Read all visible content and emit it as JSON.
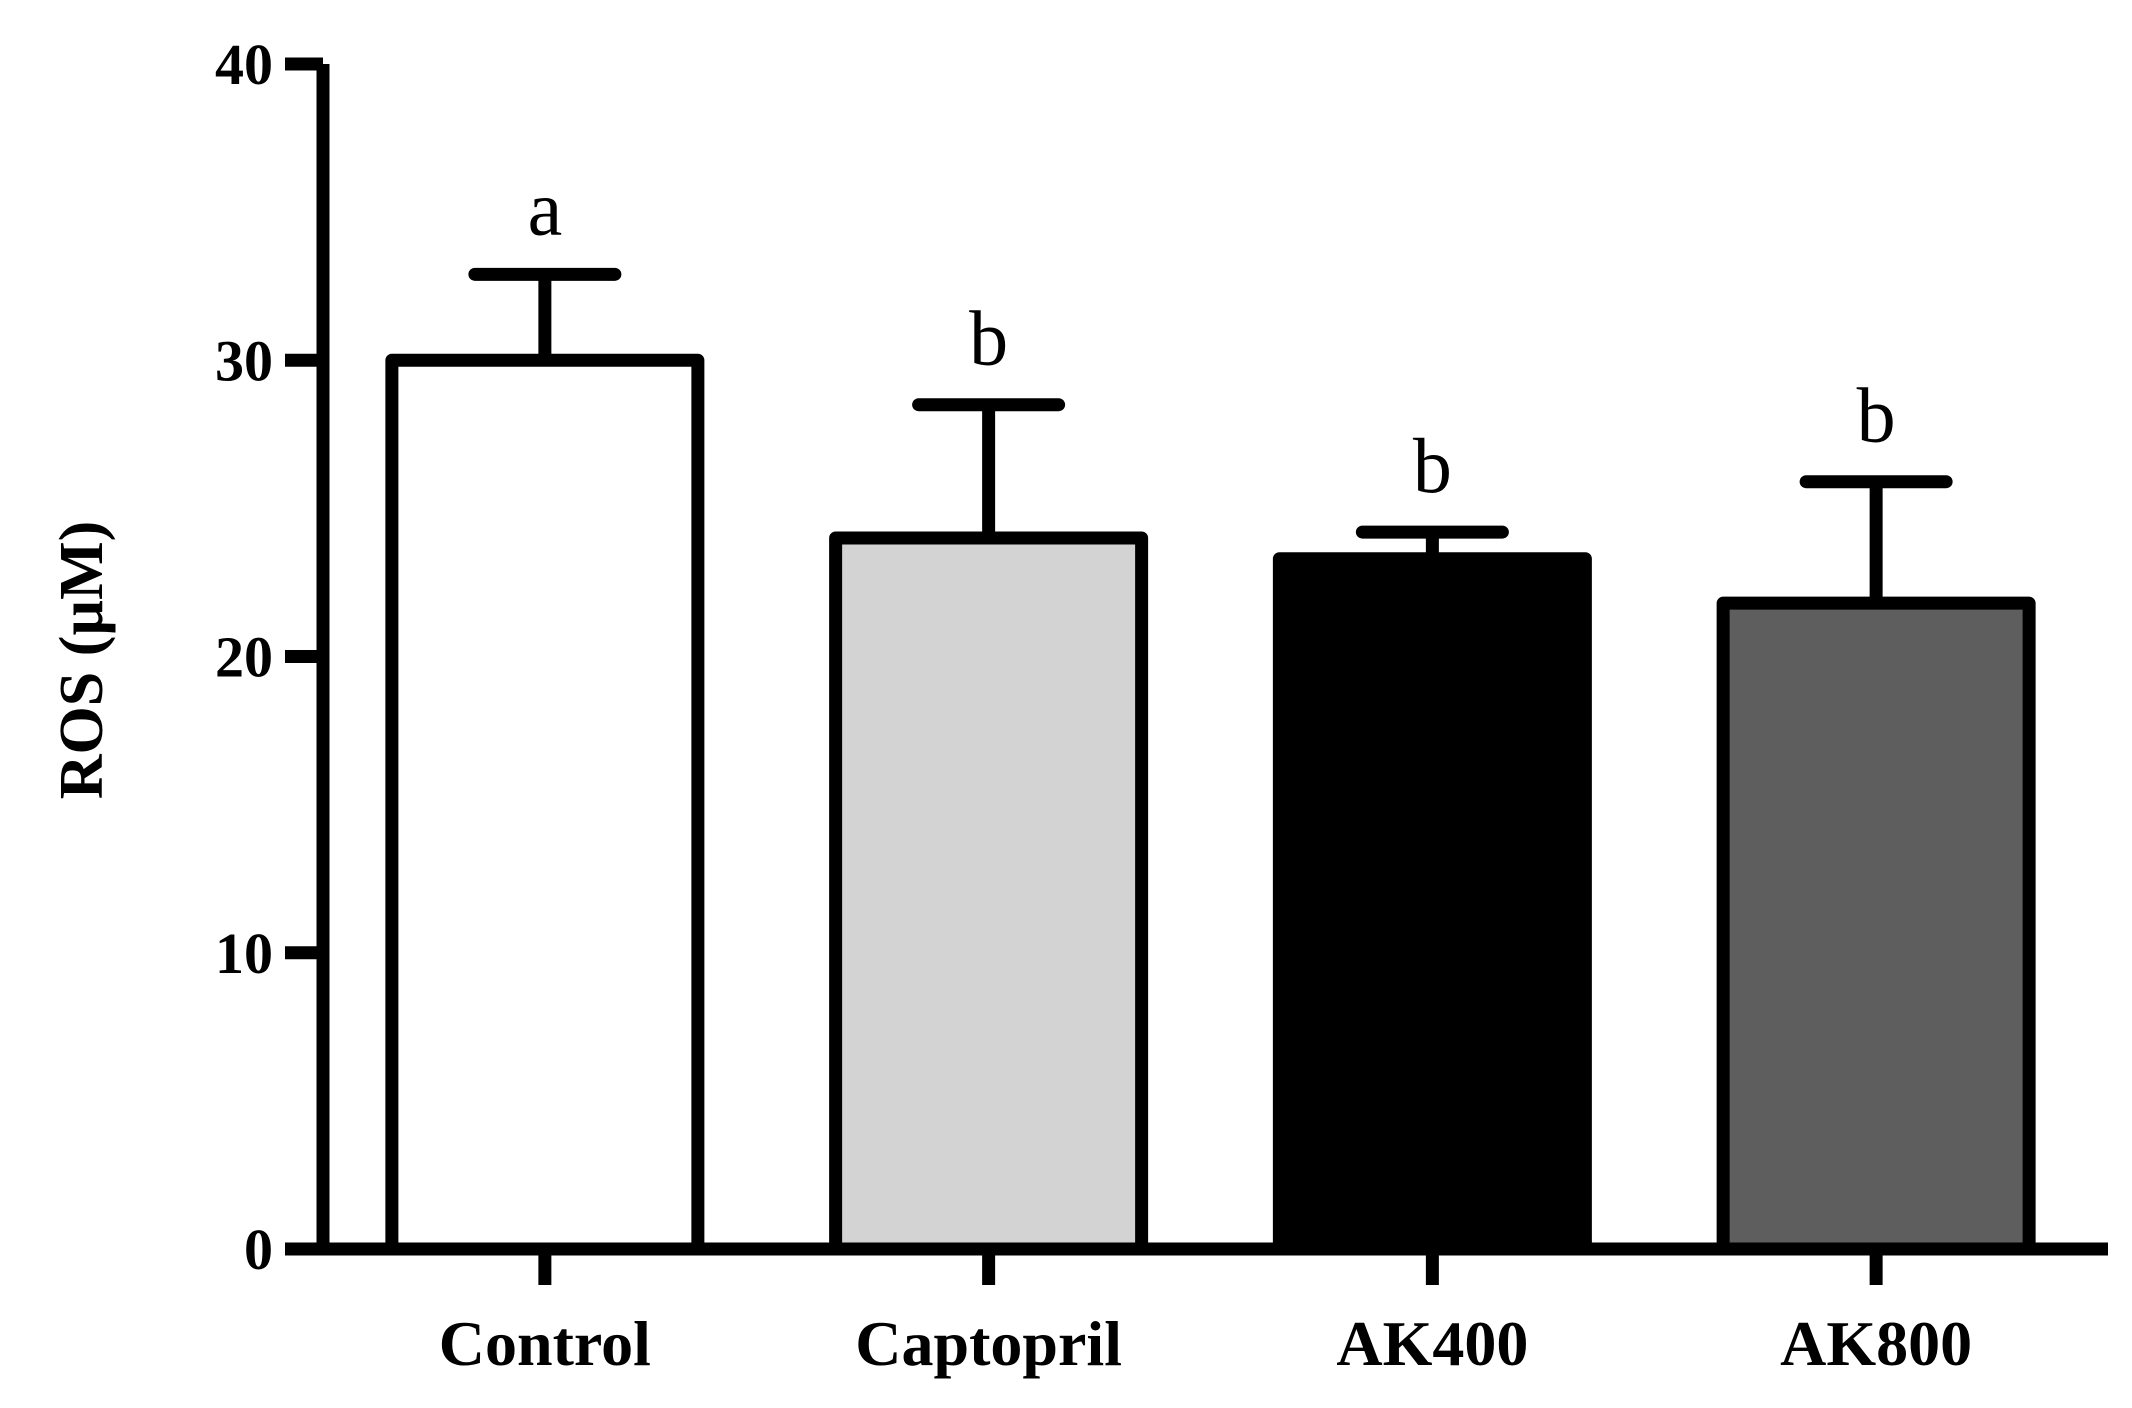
{
  "chart_data": {
    "type": "bar",
    "title": "",
    "xlabel": "",
    "ylabel": "ROS (µM)",
    "ylim": [
      0,
      40
    ],
    "yticks": [
      0,
      10,
      20,
      30,
      40
    ],
    "grid": false,
    "categories": [
      "Control",
      "Captopril",
      "AK400",
      "AK800"
    ],
    "values": [
      30.0,
      24.0,
      23.3,
      21.8
    ],
    "errors": [
      2.9,
      4.5,
      0.9,
      4.1
    ],
    "significance": [
      "a",
      "b",
      "b",
      "b"
    ],
    "colors": [
      "#ffffff",
      "#d3d3d3",
      "#000000",
      "#5e5e5e"
    ]
  }
}
